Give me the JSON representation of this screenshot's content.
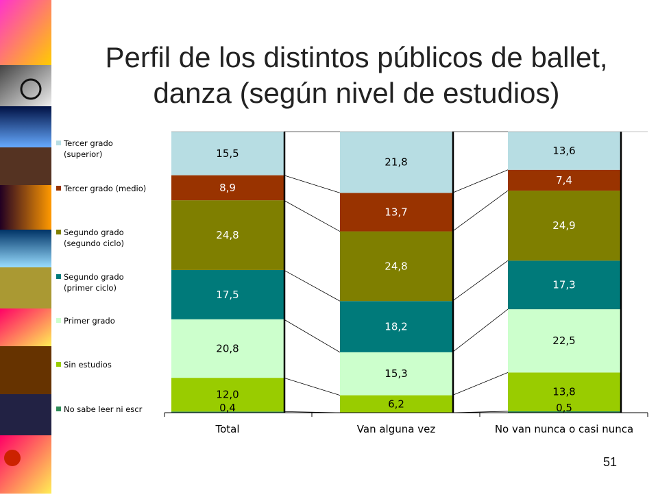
{
  "slide": {
    "title_line1": "Perfil de los distintos públicos de ballet,",
    "title_line2": "danza (según nivel de estudios)",
    "page_number": "51"
  },
  "chart_data": {
    "type": "bar",
    "stacked": true,
    "normalized_percent": true,
    "categories": [
      "Total",
      "Van alguna vez",
      "No van nunca o casi nunca"
    ],
    "series": [
      {
        "name": "No sabe leer ni escr",
        "color": "#2E8B57",
        "values": [
          0.4,
          null,
          0.5
        ],
        "labels": [
          "0,4",
          "",
          "0,5"
        ]
      },
      {
        "name": "Sin estudios",
        "color": "#99CC00",
        "values": [
          12.0,
          6.2,
          13.8
        ],
        "labels": [
          "12,0",
          "6,2",
          "13,8"
        ]
      },
      {
        "name": "Primer grado",
        "color": "#CCFFCC",
        "values": [
          20.8,
          15.3,
          22.5
        ],
        "labels": [
          "20,8",
          "15,3",
          "22,5"
        ]
      },
      {
        "name": "Segundo grado (primer ciclo)",
        "color": "#007A7A",
        "values": [
          17.5,
          18.2,
          17.3
        ],
        "labels": [
          "17,5",
          "18,2",
          "17,3"
        ]
      },
      {
        "name": "Segundo grado (segundo ciclo)",
        "color": "#7F7F00",
        "values": [
          24.8,
          24.8,
          24.9
        ],
        "labels": [
          "24,8",
          "24,8",
          "24,9"
        ]
      },
      {
        "name": "Tercer grado (medio)",
        "color": "#993300",
        "values": [
          8.9,
          13.7,
          7.4
        ],
        "labels": [
          "8,9",
          "13,7",
          "7,4"
        ]
      },
      {
        "name": "Tercer grado (superior)",
        "color": "#B7DDE3",
        "values": [
          15.5,
          21.8,
          13.6
        ],
        "labels": [
          "15,5",
          "21,8",
          "13,6"
        ]
      }
    ],
    "legend_entries": [
      {
        "lines": [
          "Tercer grado",
          "(superior)"
        ],
        "color": "#B7DDE3"
      },
      {
        "lines": [
          "Tercer grado (medio)"
        ],
        "color": "#993300"
      },
      {
        "lines": [
          "Segundo grado",
          "(segundo ciclo)"
        ],
        "color": "#7F7F00"
      },
      {
        "lines": [
          "Segundo grado",
          "(primer ciclo)"
        ],
        "color": "#007A7A"
      },
      {
        "lines": [
          "Primer grado"
        ],
        "color": "#CCFFCC"
      },
      {
        "lines": [
          "Sin estudios"
        ],
        "color": "#99CC00"
      },
      {
        "lines": [
          "No sabe leer ni escr"
        ],
        "color": "#2E8B57"
      }
    ],
    "legend_position": "left",
    "series_lines": true,
    "grid": false
  }
}
